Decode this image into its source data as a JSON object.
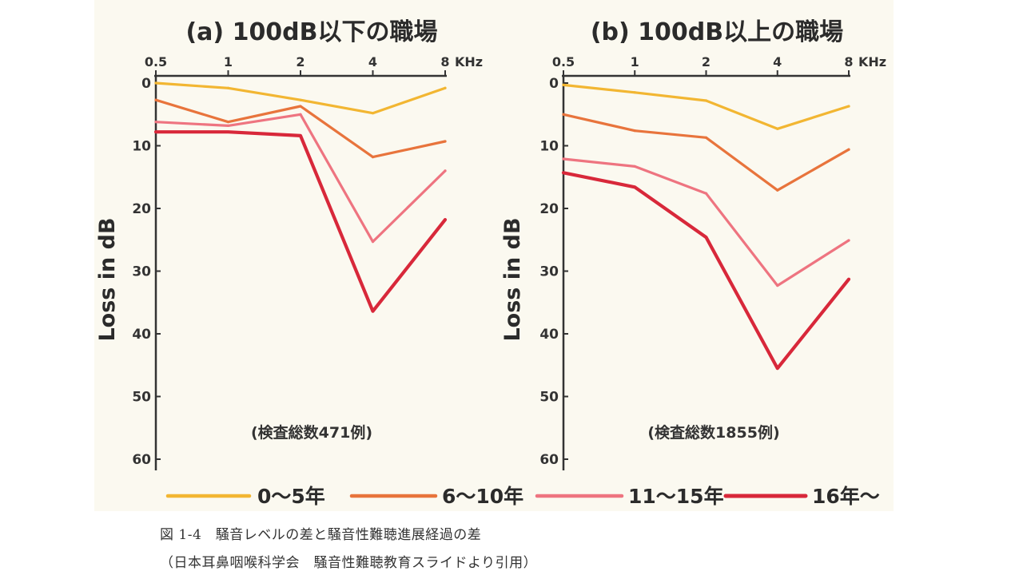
{
  "legend": [
    {
      "label": "0～5年",
      "color": "#F2B632"
    },
    {
      "label": "6～10年",
      "color": "#E8743C"
    },
    {
      "label": "11～15年",
      "color": "#EE7480"
    },
    {
      "label": "16年～",
      "color": "#D8283A"
    }
  ],
  "caption": {
    "line1": "図 1-4　騒音レベルの差と騒音性難聴進展経過の差",
    "line2": "（日本耳鼻咽喉科学会　騒音性難聴教育スライドより引用）"
  },
  "chart_data": [
    {
      "type": "line",
      "title": "(a) 100dB以下の職場",
      "note": "(検査総数471例)",
      "ylabel": "Loss in dB",
      "x_unit": "KHz",
      "x": [
        0.5,
        1,
        2,
        4,
        8
      ],
      "x_tick_labels": [
        "0.5",
        "1",
        "2",
        "4",
        "8"
      ],
      "y_ticks": [
        0,
        10,
        20,
        30,
        40,
        50,
        60
      ],
      "ylim": [
        0,
        60
      ],
      "y_inverted": true,
      "x_scale": "log",
      "series": [
        {
          "name": "0～5年",
          "values": [
            0,
            0.8,
            2.7,
            4.8,
            0.8
          ]
        },
        {
          "name": "6～10年",
          "values": [
            2.7,
            6.2,
            3.7,
            11.8,
            9.3
          ]
        },
        {
          "name": "11～15年",
          "values": [
            6.2,
            6.8,
            5.0,
            25.3,
            14.0
          ]
        },
        {
          "name": "16年～",
          "values": [
            7.8,
            7.8,
            8.4,
            36.4,
            21.8
          ]
        }
      ]
    },
    {
      "type": "line",
      "title": "(b) 100dB以上の職場",
      "note": "(検査総数1855例)",
      "ylabel": "Loss in dB",
      "x_unit": "KHz",
      "x": [
        0.5,
        1,
        2,
        4,
        8
      ],
      "x_tick_labels": [
        "0.5",
        "1",
        "2",
        "4",
        "8"
      ],
      "y_ticks": [
        0,
        10,
        20,
        30,
        40,
        50,
        60
      ],
      "ylim": [
        0,
        60
      ],
      "y_inverted": true,
      "x_scale": "log",
      "series": [
        {
          "name": "0～5年",
          "values": [
            0.3,
            1.5,
            2.8,
            7.3,
            3.7
          ]
        },
        {
          "name": "6～10年",
          "values": [
            5.0,
            7.6,
            8.7,
            17.1,
            10.6
          ]
        },
        {
          "name": "11～15年",
          "values": [
            12.1,
            13.3,
            17.6,
            32.3,
            25.1
          ]
        },
        {
          "name": "16年～",
          "values": [
            14.3,
            16.6,
            24.6,
            45.5,
            31.3
          ]
        }
      ]
    }
  ]
}
